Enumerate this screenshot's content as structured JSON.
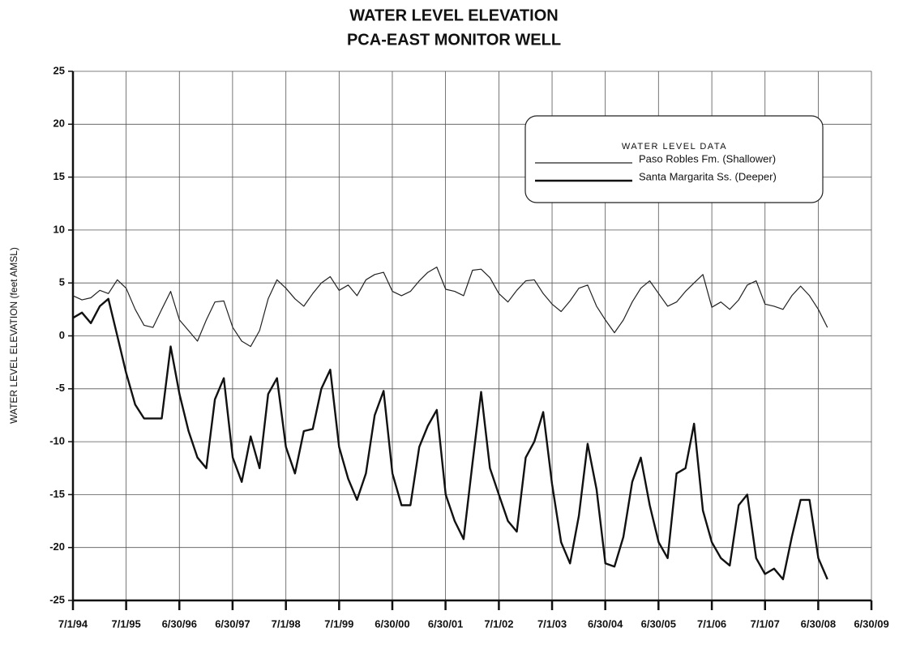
{
  "chart_data": {
    "type": "line",
    "title": "WATER LEVEL ELEVATION",
    "subtitle": "PCA-EAST MONITOR WELL",
    "y_label": "WATER LEVEL ELEVATION (feet AMSL)",
    "legend_title": "WATER LEVEL DATA",
    "legend": "upper right",
    "grid": true,
    "x": [
      "1994-07-01",
      "1994-09-01",
      "1994-11-01",
      "1995-01-01",
      "1995-03-01",
      "1995-05-01",
      "1995-07-01",
      "1995-09-01",
      "1995-11-01",
      "1996-01-01",
      "1996-03-01",
      "1996-05-01",
      "1996-07-01",
      "1996-09-01",
      "1996-11-01",
      "1997-01-01",
      "1997-03-01",
      "1997-05-01",
      "1997-07-01",
      "1997-09-01",
      "1997-11-01",
      "1998-01-01",
      "1998-03-01",
      "1998-05-01",
      "1998-07-01",
      "1998-09-01",
      "1998-11-01",
      "1999-01-01",
      "1999-03-01",
      "1999-05-01",
      "1999-07-01",
      "1999-09-01",
      "1999-11-01",
      "2000-01-01",
      "2000-03-01",
      "2000-05-01",
      "2000-07-01",
      "2000-09-01",
      "2000-11-01",
      "2001-01-01",
      "2001-03-01",
      "2001-05-01",
      "2001-07-01",
      "2001-09-01",
      "2001-11-01",
      "2002-01-01",
      "2002-03-01",
      "2002-05-01",
      "2002-07-01",
      "2002-09-01",
      "2002-11-01",
      "2003-01-01",
      "2003-03-01",
      "2003-05-01",
      "2003-07-01",
      "2003-09-01",
      "2003-11-01",
      "2004-01-01",
      "2004-03-01",
      "2004-05-01",
      "2004-07-01",
      "2004-09-01",
      "2004-11-01",
      "2005-01-01",
      "2005-03-01",
      "2005-05-01",
      "2005-07-01",
      "2005-09-01",
      "2005-11-01",
      "2006-01-01",
      "2006-03-01",
      "2006-05-01",
      "2006-07-01",
      "2006-09-01",
      "2006-11-01",
      "2007-01-01",
      "2007-03-01",
      "2007-05-01",
      "2007-07-01",
      "2007-09-01",
      "2007-11-01",
      "2008-01-01",
      "2008-03-01",
      "2008-05-01",
      "2008-07-01",
      "2008-09-01"
    ],
    "series": [
      {
        "name": "Paso Robles Fm. (Shallower)",
        "color": "#222222",
        "line_width": 1.2,
        "values": [
          3.8,
          3.4,
          3.6,
          4.3,
          4.0,
          5.3,
          4.5,
          2.5,
          1.0,
          0.8,
          2.5,
          4.2,
          1.5,
          0.5,
          -0.5,
          1.5,
          3.2,
          3.3,
          0.8,
          -0.5,
          -1.0,
          0.5,
          3.5,
          5.3,
          4.5,
          3.5,
          2.8,
          4.0,
          5.0,
          5.6,
          4.3,
          4.8,
          3.8,
          5.3,
          5.8,
          6.0,
          4.2,
          3.8,
          4.2,
          5.2,
          6.0,
          6.5,
          4.4,
          4.2,
          3.8,
          6.2,
          6.3,
          5.5,
          4.0,
          3.2,
          4.3,
          5.2,
          5.3,
          4.0,
          3.0,
          2.3,
          3.3,
          4.5,
          4.8,
          2.8,
          1.5,
          0.3,
          1.5,
          3.2,
          4.5,
          5.2,
          4.0,
          2.8,
          3.2,
          4.2,
          5.0,
          5.8,
          2.7,
          3.2,
          2.5,
          3.4,
          4.8,
          5.2,
          3.0,
          2.8,
          2.5,
          3.8,
          4.7,
          3.8,
          2.5,
          0.8
        ]
      },
      {
        "name": "Santa Margarita Ss. (Deeper)",
        "color": "#111111",
        "line_width": 2.4,
        "values": [
          1.7,
          2.2,
          1.2,
          2.8,
          3.5,
          0.0,
          -3.5,
          -6.5,
          -7.8,
          -7.8,
          -7.8,
          -1.0,
          -5.5,
          -9.0,
          -11.5,
          -12.5,
          -6.0,
          -4.0,
          -11.5,
          -13.8,
          -9.5,
          -12.5,
          -5.5,
          -4.0,
          -10.5,
          -13.0,
          -9.0,
          -8.8,
          -5.0,
          -3.2,
          -10.5,
          -13.5,
          -15.5,
          -13.0,
          -7.5,
          -5.2,
          -13.0,
          -16.0,
          -16.0,
          -10.5,
          -8.5,
          -7.0,
          -15.0,
          -17.5,
          -19.2,
          -12.0,
          -5.3,
          -12.5,
          -15.0,
          -17.5,
          -18.5,
          -11.5,
          -10.0,
          -7.2,
          -14.0,
          -19.5,
          -21.5,
          -17.0,
          -10.2,
          -14.5,
          -21.5,
          -21.8,
          -19.0,
          -13.8,
          -11.5,
          -16.0,
          -19.5,
          -21.0,
          -13.0,
          -12.5,
          -8.3,
          -16.5,
          -19.5,
          -21.0,
          -21.7,
          -16.0,
          -15.0,
          -21.0,
          -22.5,
          -22.0,
          -23.0,
          -19.0,
          -15.5,
          -15.5,
          -21.0,
          -23.0
        ]
      }
    ],
    "xlim": [
      "1994-07-01",
      "2009-06-30"
    ],
    "xticks": [
      {
        "value": "1994-07-01",
        "label": "7/1/94"
      },
      {
        "value": "1995-07-01",
        "label": "7/1/95"
      },
      {
        "value": "1996-06-30",
        "label": "6/30/96"
      },
      {
        "value": "1997-06-30",
        "label": "6/30/97"
      },
      {
        "value": "1998-07-01",
        "label": "7/1/98"
      },
      {
        "value": "1999-07-01",
        "label": "7/1/99"
      },
      {
        "value": "2000-06-30",
        "label": "6/30/00"
      },
      {
        "value": "2001-06-30",
        "label": "6/30/01"
      },
      {
        "value": "2002-07-01",
        "label": "7/1/02"
      },
      {
        "value": "2003-07-01",
        "label": "7/1/03"
      },
      {
        "value": "2004-06-30",
        "label": "6/30/04"
      },
      {
        "value": "2005-06-30",
        "label": "6/30/05"
      },
      {
        "value": "2006-07-01",
        "label": "7/1/06"
      },
      {
        "value": "2007-07-01",
        "label": "7/1/07"
      },
      {
        "value": "2008-06-30",
        "label": "6/30/08"
      },
      {
        "value": "2009-06-30",
        "label": "6/30/09"
      }
    ],
    "ylim": [
      -25,
      25
    ],
    "yticks": [
      -25,
      -20,
      -15,
      -10,
      -5,
      0,
      5,
      10,
      15,
      20,
      25
    ]
  }
}
